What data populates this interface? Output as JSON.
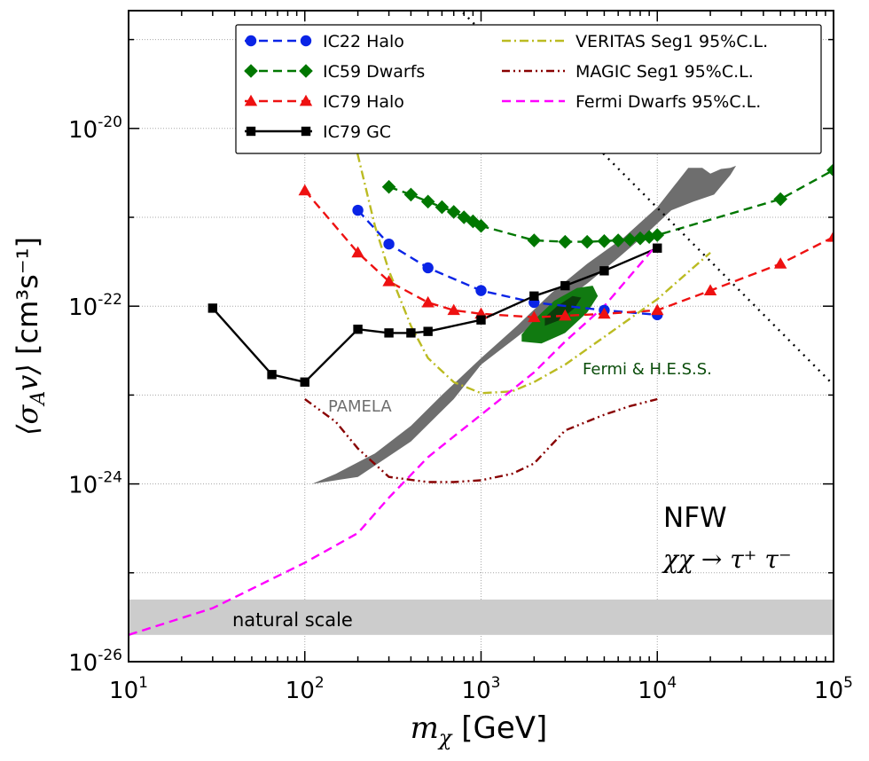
{
  "chart_data": {
    "type": "line",
    "xscale": "log",
    "yscale": "log",
    "xlim": [
      10,
      100000
    ],
    "ylim": [
      1e-26,
      2e-19
    ],
    "xlabel": {
      "symbol": "m",
      "sub": "χ",
      "unit": "[GeV]"
    },
    "ylabel": {
      "symbol": "⟨σ",
      "sub": "A",
      "tail": "v⟩",
      "unit": "[cm³s⁻¹]"
    },
    "xticks": [
      {
        "value": 10,
        "base": "10",
        "exp": "1"
      },
      {
        "value": 100,
        "base": "10",
        "exp": "2"
      },
      {
        "value": 1000,
        "base": "10",
        "exp": "3"
      },
      {
        "value": 10000,
        "base": "10",
        "exp": "4"
      },
      {
        "value": 100000,
        "base": "10",
        "exp": "5"
      }
    ],
    "yticks": [
      {
        "value": 1e-26,
        "base": "10",
        "exp": "-26"
      },
      {
        "value": 1e-24,
        "base": "10",
        "exp": "-24"
      },
      {
        "value": 1e-22,
        "base": "10",
        "exp": "-22"
      },
      {
        "value": 1e-20,
        "base": "10",
        "exp": "-20"
      }
    ],
    "grid": true,
    "legend_position": "top-right",
    "series": [
      {
        "name": "IC22 Halo",
        "color": "#0a24e6",
        "dash": "dashed",
        "marker": "circle",
        "x": [
          200,
          300,
          500,
          1000,
          2000,
          5000,
          10000
        ],
        "y": [
          1.2e-21,
          5e-22,
          2.7e-22,
          1.5e-22,
          1.1e-22,
          9e-23,
          8e-23
        ]
      },
      {
        "name": "IC59 Dwarfs",
        "color": "#007700",
        "dash": "dashed",
        "marker": "diamond",
        "x": [
          300,
          400,
          500,
          600,
          700,
          800,
          900,
          1000,
          2000,
          3000,
          4000,
          5000,
          6000,
          7000,
          8000,
          9000,
          10000,
          50000,
          100000
        ],
        "y": [
          2.2e-21,
          1.8e-21,
          1.5e-21,
          1.3e-21,
          1.15e-21,
          1e-21,
          9e-22,
          8e-22,
          5.5e-22,
          5.3e-22,
          5.3e-22,
          5.4e-22,
          5.5e-22,
          5.6e-22,
          5.8e-22,
          6e-22,
          6.3e-22,
          1.6e-21,
          3.4e-21
        ]
      },
      {
        "name": "IC79 Halo",
        "color": "#ee1111",
        "dash": "dashed",
        "marker": "triangle",
        "x": [
          100,
          200,
          300,
          500,
          700,
          1000,
          2000,
          3000,
          5000,
          10000,
          20000,
          50000,
          100000
        ],
        "y": [
          2e-21,
          4e-22,
          1.9e-22,
          1.1e-22,
          9e-23,
          8.2e-23,
          7.5e-23,
          7.8e-23,
          8.2e-23,
          9e-23,
          1.5e-22,
          3e-22,
          6e-22
        ]
      },
      {
        "name": "IC79 GC",
        "color": "#000000",
        "dash": "solid",
        "marker": "square",
        "x": [
          30,
          65,
          100,
          200,
          300,
          400,
          500,
          1000,
          2000,
          3000,
          5000,
          10000
        ],
        "y": [
          9.5e-23,
          1.7e-23,
          1.4e-23,
          5.5e-23,
          5e-23,
          5e-23,
          5.2e-23,
          7e-23,
          1.3e-22,
          1.7e-22,
          2.5e-22,
          4.5e-22
        ]
      },
      {
        "name": "VERITAS Seg1 95%C.L.",
        "color": "#bbbb22",
        "dash": "dashdot",
        "marker": "none",
        "x": [
          170,
          200,
          250,
          300,
          400,
          500,
          700,
          1000,
          1500,
          2000,
          3000,
          5000,
          10000,
          20000
        ],
        "y": [
          2e-20,
          5e-21,
          8e-22,
          2.5e-22,
          6e-23,
          2.6e-23,
          1.4e-23,
          1.05e-23,
          1.1e-23,
          1.4e-23,
          2.2e-23,
          4.5e-23,
          1.2e-22,
          4e-22
        ]
      },
      {
        "name": "MAGIC Seg1 95%C.L.",
        "color": "#880000",
        "dash": "dashdotdot",
        "marker": "none",
        "x": [
          100,
          150,
          200,
          300,
          500,
          700,
          1000,
          1500,
          2000,
          3000,
          5000,
          7000,
          10000
        ],
        "y": [
          9e-24,
          5e-24,
          2.5e-24,
          1.2e-24,
          1.05e-24,
          1.05e-24,
          1.1e-24,
          1.3e-24,
          1.7e-24,
          4e-24,
          6e-24,
          7.5e-24,
          9e-24
        ]
      },
      {
        "name": "Fermi Dwarfs 95%C.L.",
        "color": "#ff00ff",
        "dash": "dashed",
        "marker": "none",
        "x": [
          10,
          30,
          100,
          200,
          300,
          500,
          1000,
          2000,
          3000,
          5000,
          10000
        ],
        "y": [
          2e-26,
          4e-26,
          1.3e-25,
          2.8e-25,
          7e-25,
          2e-24,
          6e-24,
          1.8e-23,
          4e-23,
          1e-22,
          5e-22
        ]
      },
      {
        "name": "Unitarity bound",
        "color": "#000000",
        "dash": "dotted",
        "marker": "none",
        "in_legend": false,
        "x": [
          500,
          100000
        ],
        "y": [
          5e-19,
          1.3e-23
        ]
      }
    ],
    "regions": [
      {
        "name": "PAMELA",
        "label": "PAMELA",
        "color": "#6e6e6e",
        "x": [
          110,
          200,
          400,
          700,
          1000,
          1600,
          2500,
          4000,
          6000,
          9000,
          12000,
          16000,
          21000,
          26000,
          28000,
          26000,
          23000,
          20000,
          18000,
          15000,
          10000,
          6500,
          4000,
          2500,
          1600,
          1000,
          600,
          400,
          250,
          150
        ],
        "y": [
          1e-24,
          1.2e-24,
          3e-24,
          9e-24,
          2.2e-23,
          4.5e-23,
          9e-23,
          1.8e-22,
          3.5e-22,
          7e-22,
          1.2e-21,
          1.5e-21,
          1.8e-21,
          3e-21,
          3.8e-21,
          3.6e-21,
          3.5e-21,
          3.1e-21,
          3.6e-21,
          3.6e-21,
          1.3e-21,
          6e-22,
          3e-22,
          1.4e-22,
          6e-23,
          2.6e-23,
          1e-23,
          4.5e-24,
          2.2e-24,
          1.3e-24
        ]
      },
      {
        "name": "Fermi & H.E.S.S. (95%)",
        "label": "Fermi & H.E.S.S.",
        "color": "#117a11",
        "x": [
          1700,
          2200,
          3000,
          4000,
          4600,
          4300,
          3500,
          2600,
          2000,
          1700
        ],
        "y": [
          4e-23,
          3.8e-23,
          5e-23,
          8.5e-23,
          1.3e-22,
          1.7e-22,
          1.6e-22,
          1.15e-22,
          7e-23,
          4.8e-23
        ]
      },
      {
        "name": "Fermi & H.E.S.S. (68%)",
        "color": "#0b3d0b",
        "x": [
          2300,
          2800,
          3400,
          3700,
          3300,
          2700,
          2300
        ],
        "y": [
          6e-23,
          7e-23,
          9.5e-23,
          1.25e-22,
          1.3e-22,
          1e-22,
          7.5e-23
        ]
      }
    ],
    "band": {
      "label": "natural scale",
      "color": "#cccccc",
      "y": [
        2e-26,
        5e-26
      ]
    },
    "annotations": {
      "model": "NFW",
      "channel": "χχ → τ⁺ τ⁻"
    }
  }
}
